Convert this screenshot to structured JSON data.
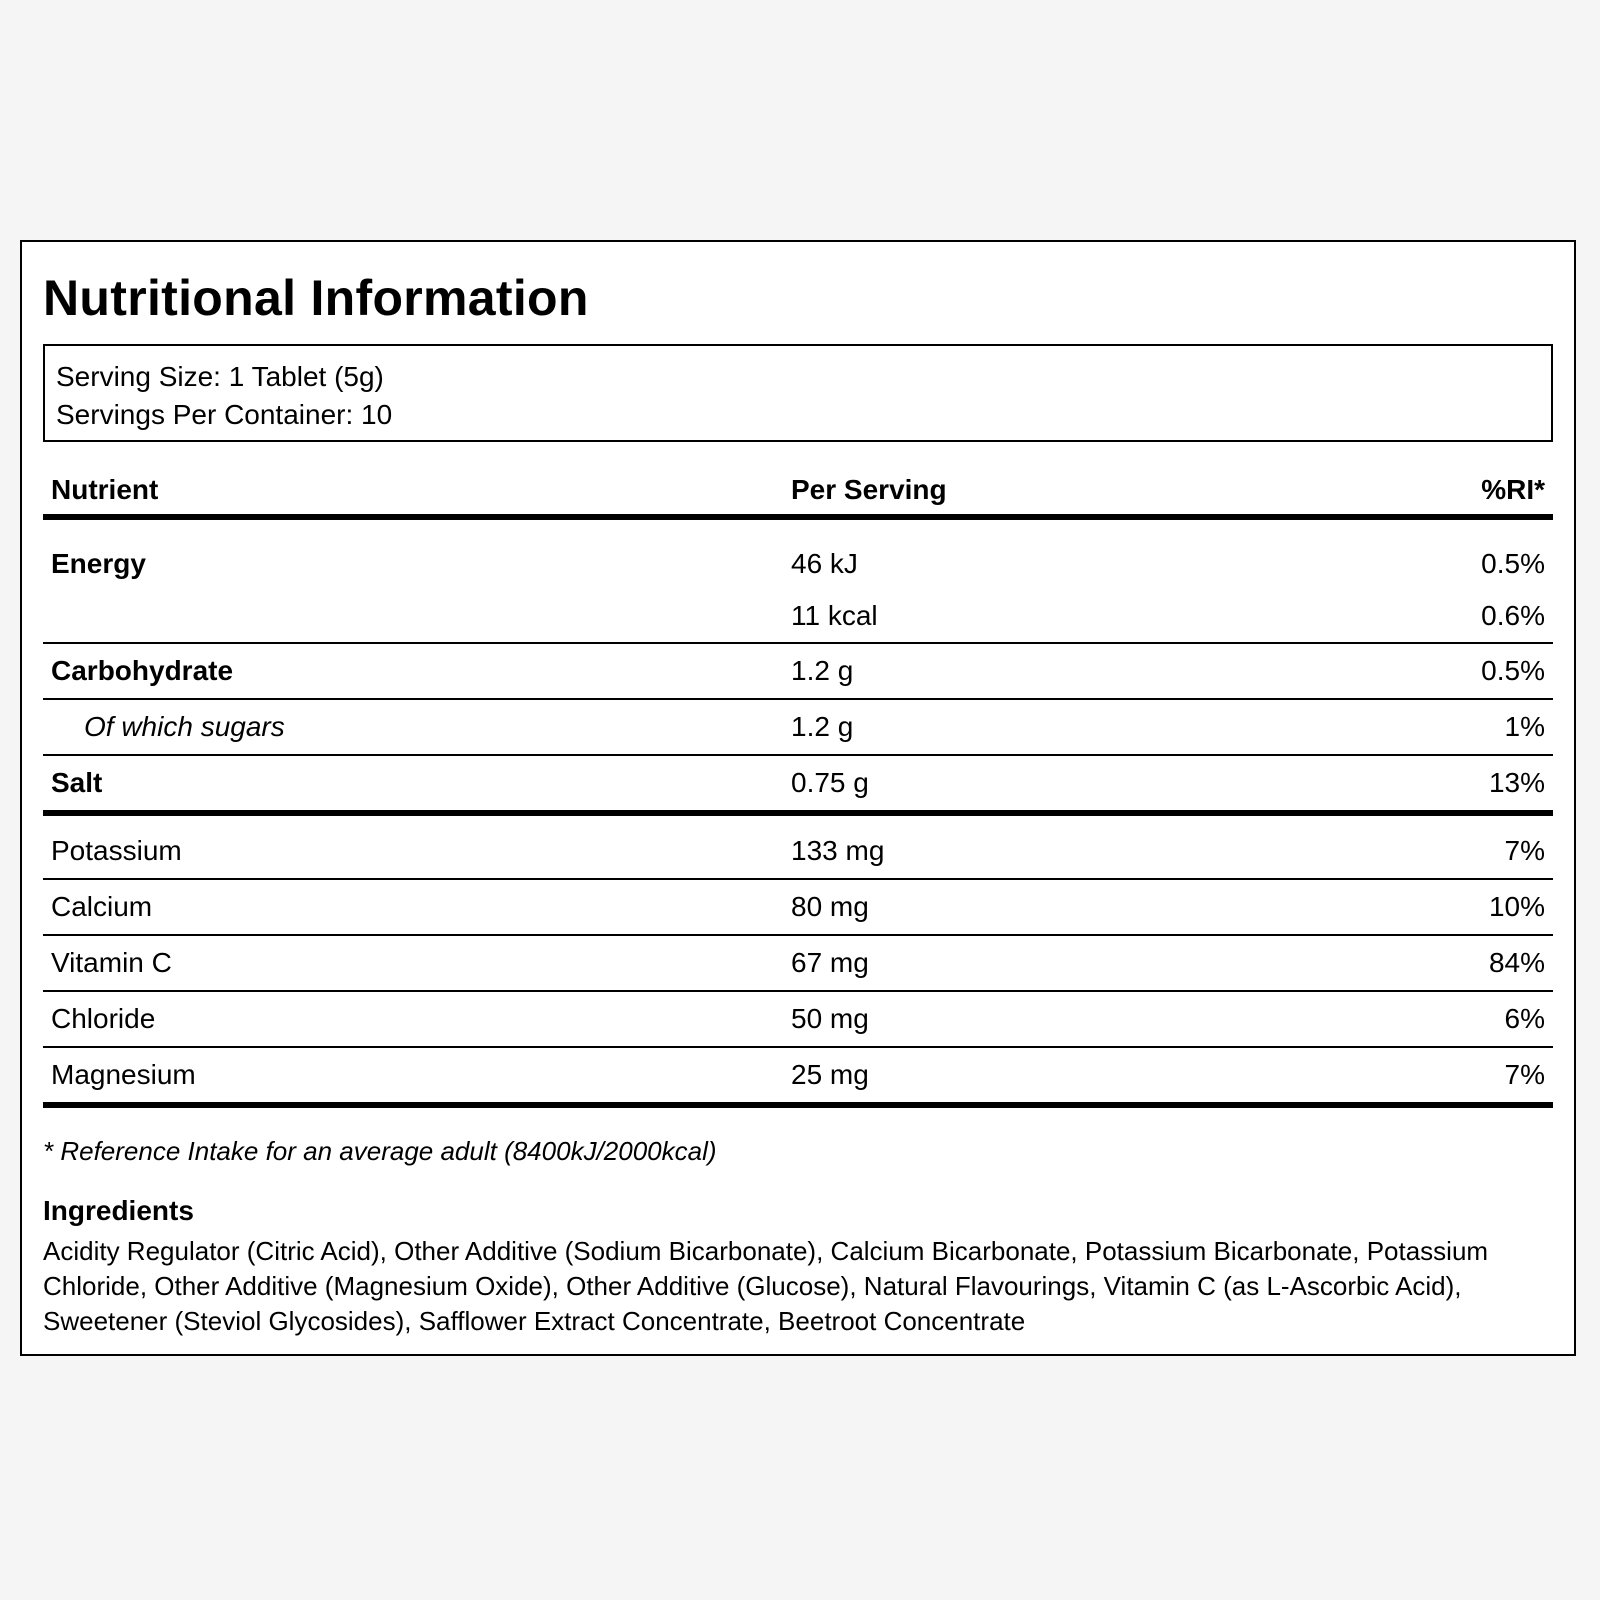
{
  "title": "Nutritional Information",
  "serving": {
    "size": "Serving Size: 1 Tablet (5g)",
    "per_container": "Servings Per Container: 10"
  },
  "table": {
    "headers": {
      "nutrient": "Nutrient",
      "per_serving": "Per Serving",
      "ri": "%RI*"
    },
    "rows": {
      "energy": {
        "name": "Energy",
        "kj": "46 kJ",
        "kj_ri": "0.5%",
        "kcal": "11 kcal",
        "kcal_ri": "0.6%"
      },
      "carbohydrate": {
        "name": "Carbohydrate",
        "amount": "1.2 g",
        "ri": "0.5%"
      },
      "sugars": {
        "name": "Of which sugars",
        "amount": "1.2 g",
        "ri": "1%"
      },
      "salt": {
        "name": "Salt",
        "amount": "0.75 g",
        "ri": "13%"
      },
      "potassium": {
        "name": "Potassium",
        "amount": "133 mg",
        "ri": "7%"
      },
      "calcium": {
        "name": "Calcium",
        "amount": "80 mg",
        "ri": "10%"
      },
      "vitamin_c": {
        "name": "Vitamin C",
        "amount": "67 mg",
        "ri": "84%"
      },
      "chloride": {
        "name": "Chloride",
        "amount": "50 mg",
        "ri": "6%"
      },
      "magnesium": {
        "name": "Magnesium",
        "amount": "25 mg",
        "ri": "7%"
      }
    }
  },
  "footnote": "* Reference Intake for an average adult (8400kJ/2000kcal)",
  "ingredients": {
    "heading": "Ingredients",
    "text": "Acidity Regulator (Citric Acid), Other Additive (Sodium Bicarbonate), Calcium Bicarbonate, Potassium Bicarbonate, Potassium Chloride, Other Additive (Magnesium Oxide), Other Additive (Glucose), Natural Flavourings, Vitamin C (as L-Ascorbic Acid), Sweetener (Steviol Glycosides), Safflower Extract Concentrate, Beetroot Concentrate"
  }
}
